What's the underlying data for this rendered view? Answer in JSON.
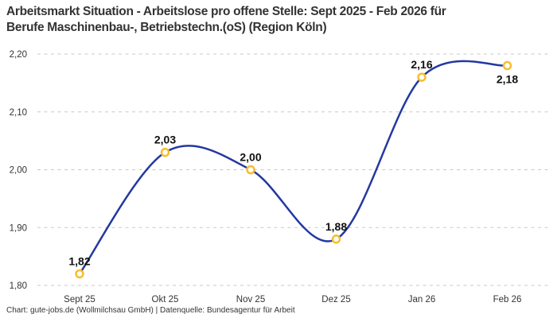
{
  "title": {
    "line1": "Arbeitsmarkt Situation - Arbeitslose pro offene Stelle: Sept 2025 - Feb 2026 für",
    "line2": "Berufe Maschinenbau-, Betriebstechn.(oS) (Region Köln)"
  },
  "footer": {
    "attribution": "Chart: gute-jobs.de (Wollmilchsau GmbH) | Datenquelle: Bundesagentur für Arbeit"
  },
  "chart_data": {
    "type": "line",
    "title": "Arbeitsmarkt Situation - Arbeitslose pro offene Stelle: Sept 2025 - Feb 2026 für Berufe Maschinenbau-, Betriebstechn.(oS) (Region Köln)",
    "categories": [
      "Sept 25",
      "Okt 25",
      "Nov 25",
      "Dez 25",
      "Jan 26",
      "Feb 26"
    ],
    "values": [
      1.82,
      2.03,
      2.0,
      1.88,
      2.16,
      2.18
    ],
    "value_labels": [
      "1,82",
      "2,03",
      "2,00",
      "1,88",
      "2,16",
      "2,18"
    ],
    "label_positions": [
      "above",
      "above",
      "above",
      "above",
      "above",
      "below"
    ],
    "ylim": [
      1.8,
      2.2
    ],
    "yticks": [
      1.8,
      1.9,
      2.0,
      2.1,
      2.2
    ],
    "ytick_labels": [
      "1,80",
      "1,90",
      "2,00",
      "2,10",
      "2,20"
    ],
    "xlabel": "",
    "ylabel": "",
    "grid": "horizontal-dashed",
    "legend": "none",
    "line_style": "smooth-spline",
    "colors": {
      "line": "#23389f",
      "marker_stroke": "#f7bd2e",
      "marker_fill": "#ffffff",
      "grid": "#c8c8c8",
      "tick_text": "#333333",
      "point_label_text": "#111111"
    }
  }
}
